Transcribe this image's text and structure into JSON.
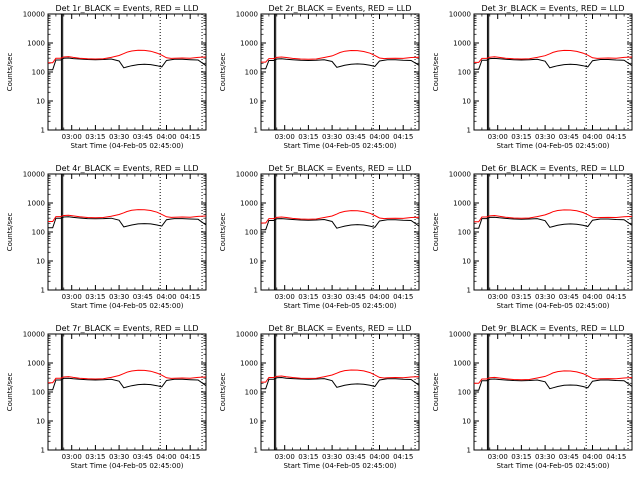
{
  "figure": {
    "xtick_labels": [
      "03:00",
      "03:15",
      "03:30",
      "03:45",
      "04:00",
      "04:15"
    ],
    "ytick_labels": [
      "1",
      "10",
      "100",
      "1000",
      "10000"
    ],
    "ylabel": "Counts/sec",
    "xlabel": "Start Time (04-Feb-05 02:45:00)",
    "colors": {
      "events": "#000000",
      "lld": "#ff0000",
      "axes": "#000000",
      "background": "#ffffff"
    }
  },
  "chart_data": [
    {
      "type": "line",
      "title": "Det 1r_BLACK = Events, RED = LLD",
      "xlabel": "Start Time (04-Feb-05 02:45:00)",
      "ylabel": "Counts/sec",
      "x_unit": "minutes after 02:45",
      "xlim": [
        0,
        100
      ],
      "ylim": [
        1,
        10000
      ],
      "yscale": "log",
      "grid": false,
      "x": [
        0,
        3,
        5,
        8,
        10,
        13,
        16,
        20,
        25,
        30,
        35,
        40,
        45,
        48,
        50,
        53,
        57,
        61,
        65,
        69,
        72,
        75,
        78,
        80,
        85,
        90,
        95,
        100
      ],
      "series": [
        {
          "values": [
            120,
            120,
            260,
            260,
            300,
            305,
            290,
            280,
            270,
            265,
            270,
            280,
            240,
            140,
            150,
            165,
            180,
            185,
            180,
            165,
            150,
            250,
            265,
            275,
            275,
            265,
            260,
            165
          ]
        },
        {
          "values": [
            210,
            210,
            300,
            300,
            330,
            340,
            320,
            300,
            285,
            280,
            285,
            320,
            370,
            430,
            480,
            530,
            560,
            555,
            520,
            450,
            380,
            310,
            295,
            300,
            305,
            300,
            320,
            330
          ]
        }
      ],
      "vertical_lines": [
        {
          "x": 8.5,
          "style": "solid"
        },
        {
          "x": 9.3,
          "style": "solid"
        },
        {
          "x": 71,
          "style": "dotted"
        },
        {
          "x": 97.5,
          "style": "dotted"
        }
      ]
    },
    {
      "type": "line",
      "title": "Det 2r_BLACK = Events, RED = LLD",
      "xlabel": "Start Time (04-Feb-05 02:45:00)",
      "ylabel": "Counts/sec",
      "x_unit": "minutes after 02:45",
      "xlim": [
        0,
        100
      ],
      "ylim": [
        1,
        10000
      ],
      "yscale": "log",
      "grid": false,
      "x": [
        0,
        3,
        5,
        8,
        10,
        13,
        16,
        20,
        25,
        30,
        35,
        40,
        45,
        48,
        50,
        53,
        57,
        61,
        65,
        69,
        72,
        75,
        78,
        80,
        85,
        90,
        95,
        100
      ],
      "series": [
        {
          "values": [
            130,
            130,
            250,
            250,
            280,
            285,
            275,
            265,
            255,
            250,
            255,
            265,
            230,
            145,
            155,
            170,
            185,
            190,
            185,
            170,
            155,
            240,
            255,
            265,
            265,
            255,
            250,
            170
          ]
        },
        {
          "values": [
            220,
            220,
            290,
            290,
            320,
            330,
            315,
            295,
            280,
            275,
            280,
            315,
            360,
            420,
            470,
            520,
            550,
            545,
            510,
            445,
            375,
            305,
            290,
            295,
            300,
            295,
            315,
            325
          ]
        }
      ],
      "vertical_lines": [
        {
          "x": 8.5,
          "style": "solid"
        },
        {
          "x": 9.3,
          "style": "solid"
        },
        {
          "x": 71,
          "style": "dotted"
        },
        {
          "x": 97.5,
          "style": "dotted"
        }
      ]
    },
    {
      "type": "line",
      "title": "Det 3r_BLACK = Events, RED = LLD",
      "xlabel": "Start Time (04-Feb-05 02:45:00)",
      "ylabel": "Counts/sec",
      "x_unit": "minutes after 02:45",
      "xlim": [
        0,
        100
      ],
      "ylim": [
        1,
        10000
      ],
      "yscale": "log",
      "grid": false,
      "x": [
        0,
        3,
        5,
        8,
        10,
        13,
        16,
        20,
        25,
        30,
        35,
        40,
        45,
        48,
        50,
        53,
        57,
        61,
        65,
        69,
        72,
        75,
        78,
        80,
        85,
        90,
        95,
        100
      ],
      "series": [
        {
          "values": [
            125,
            125,
            255,
            255,
            290,
            295,
            285,
            275,
            265,
            260,
            265,
            275,
            235,
            140,
            150,
            165,
            180,
            185,
            180,
            165,
            150,
            245,
            260,
            270,
            270,
            260,
            255,
            165
          ]
        },
        {
          "values": [
            215,
            215,
            295,
            295,
            325,
            335,
            320,
            300,
            285,
            280,
            285,
            320,
            365,
            425,
            475,
            525,
            555,
            550,
            515,
            450,
            380,
            310,
            295,
            300,
            305,
            300,
            320,
            330
          ]
        }
      ],
      "vertical_lines": [
        {
          "x": 8.5,
          "style": "solid"
        },
        {
          "x": 9.3,
          "style": "solid"
        },
        {
          "x": 71,
          "style": "dotted"
        },
        {
          "x": 97.5,
          "style": "dotted"
        }
      ]
    },
    {
      "type": "line",
      "title": "Det 4r_BLACK = Events, RED = LLD",
      "xlabel": "Start Time (04-Feb-05 02:45:00)",
      "ylabel": "Counts/sec",
      "x_unit": "minutes after 02:45",
      "xlim": [
        0,
        100
      ],
      "ylim": [
        1,
        10000
      ],
      "yscale": "log",
      "grid": false,
      "x": [
        0,
        3,
        5,
        8,
        10,
        13,
        16,
        20,
        25,
        30,
        35,
        40,
        45,
        48,
        50,
        53,
        57,
        61,
        65,
        69,
        72,
        75,
        78,
        80,
        85,
        90,
        95,
        100
      ],
      "series": [
        {
          "values": [
            140,
            140,
            300,
            300,
            330,
            335,
            320,
            305,
            290,
            285,
            290,
            300,
            255,
            150,
            160,
            175,
            190,
            195,
            190,
            175,
            160,
            265,
            280,
            290,
            290,
            280,
            275,
            175
          ]
        },
        {
          "values": [
            230,
            230,
            340,
            340,
            370,
            380,
            360,
            335,
            315,
            310,
            315,
            350,
            400,
            460,
            510,
            560,
            590,
            585,
            550,
            480,
            405,
            335,
            320,
            325,
            330,
            325,
            345,
            355
          ]
        }
      ],
      "vertical_lines": [
        {
          "x": 8.5,
          "style": "solid"
        },
        {
          "x": 9.3,
          "style": "solid"
        },
        {
          "x": 71,
          "style": "dotted"
        },
        {
          "x": 97.5,
          "style": "dotted"
        }
      ]
    },
    {
      "type": "line",
      "title": "Det 5r_BLACK = Events, RED = LLD",
      "xlabel": "Start Time (04-Feb-05 02:45:00)",
      "ylabel": "Counts/sec",
      "x_unit": "minutes after 02:45",
      "xlim": [
        0,
        100
      ],
      "ylim": [
        1,
        10000
      ],
      "yscale": "log",
      "grid": false,
      "x": [
        0,
        3,
        5,
        8,
        10,
        13,
        16,
        20,
        25,
        30,
        35,
        40,
        45,
        48,
        50,
        53,
        57,
        61,
        65,
        69,
        72,
        75,
        78,
        80,
        85,
        90,
        95,
        100
      ],
      "series": [
        {
          "values": [
            120,
            120,
            250,
            250,
            285,
            290,
            280,
            270,
            260,
            255,
            260,
            270,
            230,
            135,
            145,
            160,
            175,
            180,
            175,
            160,
            145,
            240,
            255,
            265,
            265,
            255,
            250,
            160
          ]
        },
        {
          "values": [
            205,
            205,
            290,
            290,
            320,
            330,
            315,
            295,
            280,
            275,
            280,
            315,
            355,
            415,
            465,
            515,
            545,
            540,
            505,
            440,
            370,
            305,
            290,
            295,
            300,
            295,
            315,
            325
          ]
        }
      ],
      "vertical_lines": [
        {
          "x": 8.5,
          "style": "solid"
        },
        {
          "x": 9.3,
          "style": "solid"
        },
        {
          "x": 71,
          "style": "dotted"
        },
        {
          "x": 97.5,
          "style": "dotted"
        }
      ]
    },
    {
      "type": "line",
      "title": "Det 6r_BLACK = Events, RED = LLD",
      "xlabel": "Start Time (04-Feb-05 02:45:00)",
      "ylabel": "Counts/sec",
      "x_unit": "minutes after 02:45",
      "xlim": [
        0,
        100
      ],
      "ylim": [
        1,
        10000
      ],
      "yscale": "log",
      "grid": false,
      "x": [
        0,
        3,
        5,
        8,
        10,
        13,
        16,
        20,
        25,
        30,
        35,
        40,
        45,
        48,
        50,
        53,
        57,
        61,
        65,
        69,
        72,
        75,
        78,
        80,
        85,
        90,
        95,
        100
      ],
      "series": [
        {
          "values": [
            135,
            135,
            290,
            290,
            320,
            325,
            310,
            295,
            280,
            275,
            280,
            290,
            245,
            145,
            155,
            170,
            185,
            190,
            185,
            170,
            155,
            255,
            270,
            280,
            280,
            270,
            265,
            170
          ]
        },
        {
          "values": [
            225,
            225,
            330,
            330,
            360,
            370,
            350,
            325,
            305,
            300,
            305,
            340,
            390,
            450,
            500,
            550,
            580,
            575,
            540,
            470,
            395,
            325,
            310,
            315,
            320,
            315,
            335,
            345
          ]
        }
      ],
      "vertical_lines": [
        {
          "x": 8.5,
          "style": "solid"
        },
        {
          "x": 9.3,
          "style": "solid"
        },
        {
          "x": 71,
          "style": "dotted"
        },
        {
          "x": 97.5,
          "style": "dotted"
        }
      ]
    },
    {
      "type": "line",
      "title": "Det 7r_BLACK = Events, RED = LLD",
      "xlabel": "Start Time (04-Feb-05 02:45:00)",
      "ylabel": "Counts/sec",
      "x_unit": "minutes after 02:45",
      "xlim": [
        0,
        100
      ],
      "ylim": [
        1,
        10000
      ],
      "yscale": "log",
      "grid": false,
      "x": [
        0,
        3,
        5,
        8,
        10,
        13,
        16,
        20,
        25,
        30,
        35,
        40,
        45,
        48,
        50,
        53,
        57,
        61,
        65,
        69,
        72,
        75,
        78,
        80,
        85,
        90,
        95,
        100
      ],
      "series": [
        {
          "values": [
            120,
            120,
            260,
            260,
            295,
            300,
            285,
            275,
            265,
            260,
            265,
            275,
            235,
            140,
            150,
            165,
            180,
            185,
            180,
            165,
            150,
            250,
            265,
            275,
            275,
            265,
            260,
            165
          ]
        },
        {
          "values": [
            210,
            210,
            300,
            300,
            330,
            340,
            320,
            300,
            285,
            280,
            285,
            320,
            370,
            430,
            480,
            530,
            560,
            555,
            520,
            450,
            380,
            310,
            295,
            300,
            305,
            300,
            320,
            330
          ]
        }
      ],
      "vertical_lines": [
        {
          "x": 8.5,
          "style": "solid"
        },
        {
          "x": 9.3,
          "style": "solid"
        },
        {
          "x": 71,
          "style": "dotted"
        },
        {
          "x": 97.5,
          "style": "dotted"
        }
      ]
    },
    {
      "type": "line",
      "title": "Det 8r_BLACK = Events, RED = LLD",
      "xlabel": "Start Time (04-Feb-05 02:45:00)",
      "ylabel": "Counts/sec",
      "x_unit": "minutes after 02:45",
      "xlim": [
        0,
        100
      ],
      "ylim": [
        1,
        10000
      ],
      "yscale": "log",
      "grid": false,
      "x": [
        0,
        3,
        5,
        8,
        10,
        13,
        16,
        20,
        25,
        30,
        35,
        40,
        45,
        48,
        50,
        53,
        57,
        61,
        65,
        69,
        72,
        75,
        78,
        80,
        85,
        90,
        95,
        100
      ],
      "series": [
        {
          "values": [
            130,
            130,
            275,
            275,
            310,
            315,
            300,
            290,
            280,
            275,
            280,
            290,
            245,
            145,
            155,
            170,
            185,
            190,
            185,
            170,
            155,
            260,
            275,
            285,
            285,
            275,
            270,
            170
          ]
        },
        {
          "values": [
            220,
            220,
            315,
            315,
            345,
            355,
            335,
            315,
            300,
            295,
            300,
            335,
            385,
            445,
            495,
            545,
            575,
            570,
            535,
            465,
            390,
            320,
            305,
            310,
            315,
            310,
            330,
            340
          ]
        }
      ],
      "vertical_lines": [
        {
          "x": 8.5,
          "style": "solid"
        },
        {
          "x": 9.3,
          "style": "solid"
        },
        {
          "x": 71,
          "style": "dotted"
        },
        {
          "x": 97.5,
          "style": "dotted"
        }
      ]
    },
    {
      "type": "line",
      "title": "Det 9r_BLACK = Events, RED = LLD",
      "xlabel": "Start Time (04-Feb-05 02:45:00)",
      "ylabel": "Counts/sec",
      "x_unit": "minutes after 02:45",
      "xlim": [
        0,
        100
      ],
      "ylim": [
        1,
        10000
      ],
      "yscale": "log",
      "grid": false,
      "x": [
        0,
        3,
        5,
        8,
        10,
        13,
        16,
        20,
        25,
        30,
        35,
        40,
        45,
        48,
        50,
        53,
        57,
        61,
        65,
        69,
        72,
        75,
        78,
        80,
        85,
        90,
        95,
        100
      ],
      "series": [
        {
          "values": [
            115,
            115,
            245,
            245,
            275,
            280,
            270,
            260,
            250,
            245,
            250,
            260,
            225,
            130,
            140,
            155,
            170,
            175,
            170,
            155,
            140,
            235,
            250,
            260,
            260,
            250,
            245,
            155
          ]
        },
        {
          "values": [
            200,
            200,
            280,
            280,
            310,
            320,
            305,
            285,
            270,
            265,
            270,
            305,
            345,
            405,
            455,
            505,
            535,
            530,
            495,
            430,
            360,
            295,
            280,
            285,
            290,
            285,
            305,
            315
          ]
        }
      ],
      "vertical_lines": [
        {
          "x": 8.5,
          "style": "solid"
        },
        {
          "x": 9.3,
          "style": "solid"
        },
        {
          "x": 71,
          "style": "dotted"
        },
        {
          "x": 97.5,
          "style": "dotted"
        }
      ]
    }
  ]
}
